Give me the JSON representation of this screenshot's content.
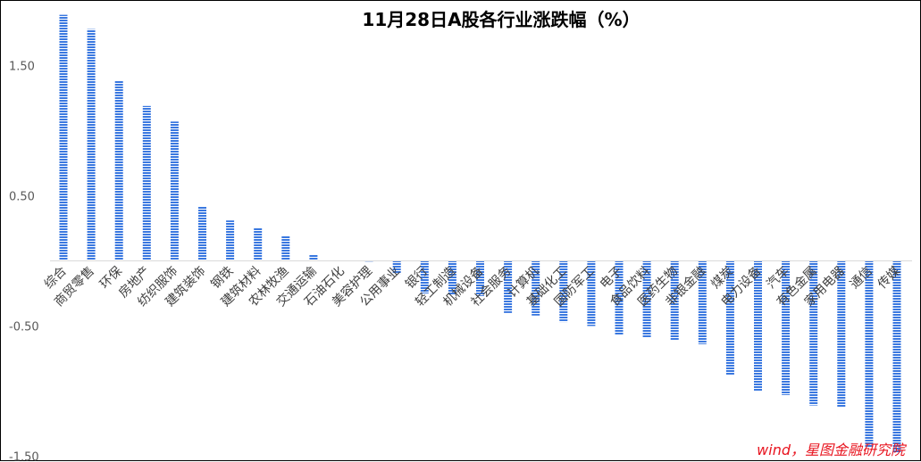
{
  "chart_data": {
    "type": "bar",
    "title": "11月28日A股各行业涨跌幅（%）",
    "xlabel": "",
    "ylabel": "",
    "y_tick_labels": [
      "1.50",
      "0.50",
      "-0.50",
      "-1.50"
    ],
    "y_tick_values": [
      1.5,
      0.5,
      -0.5,
      -1.5
    ],
    "ylim": [
      -1.5,
      1.9
    ],
    "grid": false,
    "legend": "none",
    "bar_color": "#3a78e0",
    "bar_style": "striped",
    "categories": [
      "综合",
      "商贸零售",
      "环保",
      "房地产",
      "纺织服饰",
      "建筑装饰",
      "钢铁",
      "建筑材料",
      "农林牧渔",
      "交通运输",
      "石油石化",
      "美容护理",
      "公用事业",
      "银行",
      "轻工制造",
      "机械设备",
      "社会服务",
      "计算机",
      "基础化工",
      "国防军工",
      "电子",
      "食品饮料",
      "医药生物",
      "非银金融",
      "煤炭",
      "电力设备",
      "汽车",
      "有色金属",
      "家用电器",
      "通信",
      "传媒"
    ],
    "values": [
      1.89,
      1.78,
      1.38,
      1.19,
      1.07,
      0.42,
      0.31,
      0.25,
      0.19,
      0.05,
      0.01,
      0.0,
      -0.1,
      -0.25,
      -0.26,
      -0.27,
      -0.4,
      -0.42,
      -0.47,
      -0.5,
      -0.57,
      -0.59,
      -0.61,
      -0.64,
      -0.88,
      -1.0,
      -1.03,
      -1.11,
      -1.12,
      -1.43,
      -1.47
    ]
  },
  "source_text": "wind，星图金融研究院",
  "source_color": "#e8141f"
}
